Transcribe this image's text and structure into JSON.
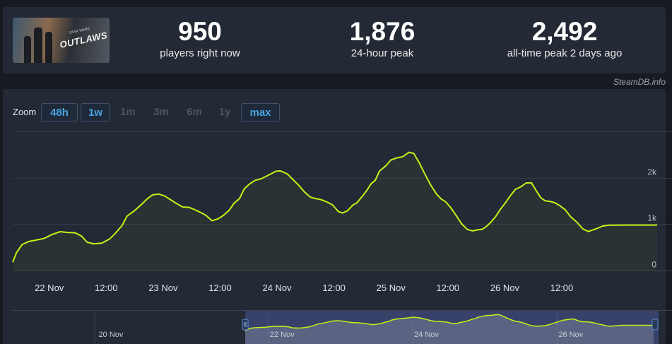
{
  "game": {
    "logo_text": "OUTLAWS",
    "logo_subtext": "STAR WARS"
  },
  "stats": [
    {
      "value": "950",
      "label": "players right now"
    },
    {
      "value": "1,876",
      "label": "24-hour peak"
    },
    {
      "value": "2,492",
      "label": "all-time peak 2 days ago"
    }
  ],
  "attribution": "SteamDB.info",
  "zoom": {
    "label": "Zoom",
    "buttons": [
      {
        "label": "48h",
        "active": true
      },
      {
        "label": "1w",
        "active": true
      },
      {
        "label": "1m",
        "active": false
      },
      {
        "label": "3m",
        "active": false
      },
      {
        "label": "6m",
        "active": false
      },
      {
        "label": "1y",
        "active": false
      },
      {
        "label": "max",
        "active": true
      }
    ]
  },
  "chart_data": {
    "type": "line",
    "ylim": [
      0,
      3000
    ],
    "yticks": [
      {
        "value": 0,
        "label": "0"
      },
      {
        "value": 1000,
        "label": "1k"
      },
      {
        "value": 2000,
        "label": "2k"
      }
    ],
    "xlim": [
      -7.7,
      128.1
    ],
    "xticks": [
      {
        "hours": 0,
        "label": "22 Nov"
      },
      {
        "hours": 12,
        "label": "12:00"
      },
      {
        "hours": 24,
        "label": "23 Nov"
      },
      {
        "hours": 36,
        "label": "12:00"
      },
      {
        "hours": 48,
        "label": "24 Nov"
      },
      {
        "hours": 60,
        "label": "12:00"
      },
      {
        "hours": 72,
        "label": "25 Nov"
      },
      {
        "hours": 84,
        "label": "12:00"
      },
      {
        "hours": 96,
        "label": "26 Nov"
      },
      {
        "hours": 108,
        "label": "12:00"
      }
    ],
    "grid": true,
    "line_color": "#c6f215",
    "series": [
      {
        "x": [
          -7.7,
          -6.9,
          -5.7,
          -4.3,
          -2.6,
          -1.0,
          0.6,
          2.3,
          3.9,
          5.5,
          6.8,
          8.0,
          9.4,
          11.1,
          12.7,
          13.9,
          15.3,
          16.4,
          17.8,
          19.4,
          20.6,
          21.8,
          23.1,
          24.3,
          25.7,
          26.8,
          28.1,
          29.5,
          30.7,
          31.8,
          33.0,
          34.3,
          35.6,
          36.7,
          37.9,
          38.9,
          40.1,
          41.1,
          42.2,
          43.4,
          44.5,
          45.7,
          46.7,
          47.7,
          48.7,
          50.2,
          51.2,
          52.5,
          53.8,
          55.1,
          56.2,
          57.4,
          58.7,
          59.7,
          60.9,
          61.8,
          62.8,
          64.0,
          64.8,
          65.9,
          66.9,
          67.8,
          68.7,
          69.6,
          70.9,
          72.0,
          73.2,
          74.5,
          75.8,
          76.8,
          78.0,
          79.1,
          80.4,
          81.6,
          82.6,
          83.6,
          84.6,
          85.7,
          86.9,
          88.1,
          89.2,
          90.2,
          91.3,
          92.1,
          93.0,
          94.0,
          95.0,
          96.1,
          97.0,
          98.2,
          99.4,
          100.5,
          101.6,
          102.7,
          103.6,
          104.5,
          105.4,
          106.6,
          107.6,
          108.7,
          109.9,
          111.2,
          112.4,
          113.6,
          114.4,
          115.4,
          116.6,
          118.0,
          119.5,
          121.1,
          122.7,
          124.3,
          125.9,
          127.1,
          128.1
        ],
        "values": [
          180,
          388,
          562,
          627,
          661,
          696,
          778,
          837,
          821,
          813,
          741,
          609,
          577,
          592,
          679,
          801,
          966,
          1174,
          1277,
          1422,
          1543,
          1634,
          1647,
          1610,
          1517,
          1446,
          1370,
          1361,
          1309,
          1256,
          1193,
          1074,
          1116,
          1190,
          1297,
          1448,
          1552,
          1763,
          1866,
          1946,
          1972,
          2031,
          2082,
          2140,
          2148,
          2082,
          1975,
          1846,
          1692,
          1578,
          1550,
          1524,
          1470,
          1414,
          1273,
          1240,
          1286,
          1413,
          1457,
          1591,
          1726,
          1868,
          1946,
          2146,
          2257,
          2384,
          2428,
          2455,
          2549,
          2526,
          2318,
          2091,
          1839,
          1649,
          1542,
          1475,
          1355,
          1193,
          1006,
          886,
          855,
          875,
          893,
          948,
          1036,
          1154,
          1311,
          1457,
          1588,
          1750,
          1808,
          1888,
          1893,
          1707,
          1567,
          1503,
          1493,
          1460,
          1398,
          1313,
          1156,
          1041,
          900,
          842,
          871,
          906,
          959,
          979,
          978,
          980,
          980,
          980,
          980,
          980,
          980
        ]
      }
    ]
  },
  "navigator": {
    "label_left": "20 Nov",
    "labels": [
      "22 Nov",
      "24 Nov",
      "26 Nov"
    ]
  }
}
